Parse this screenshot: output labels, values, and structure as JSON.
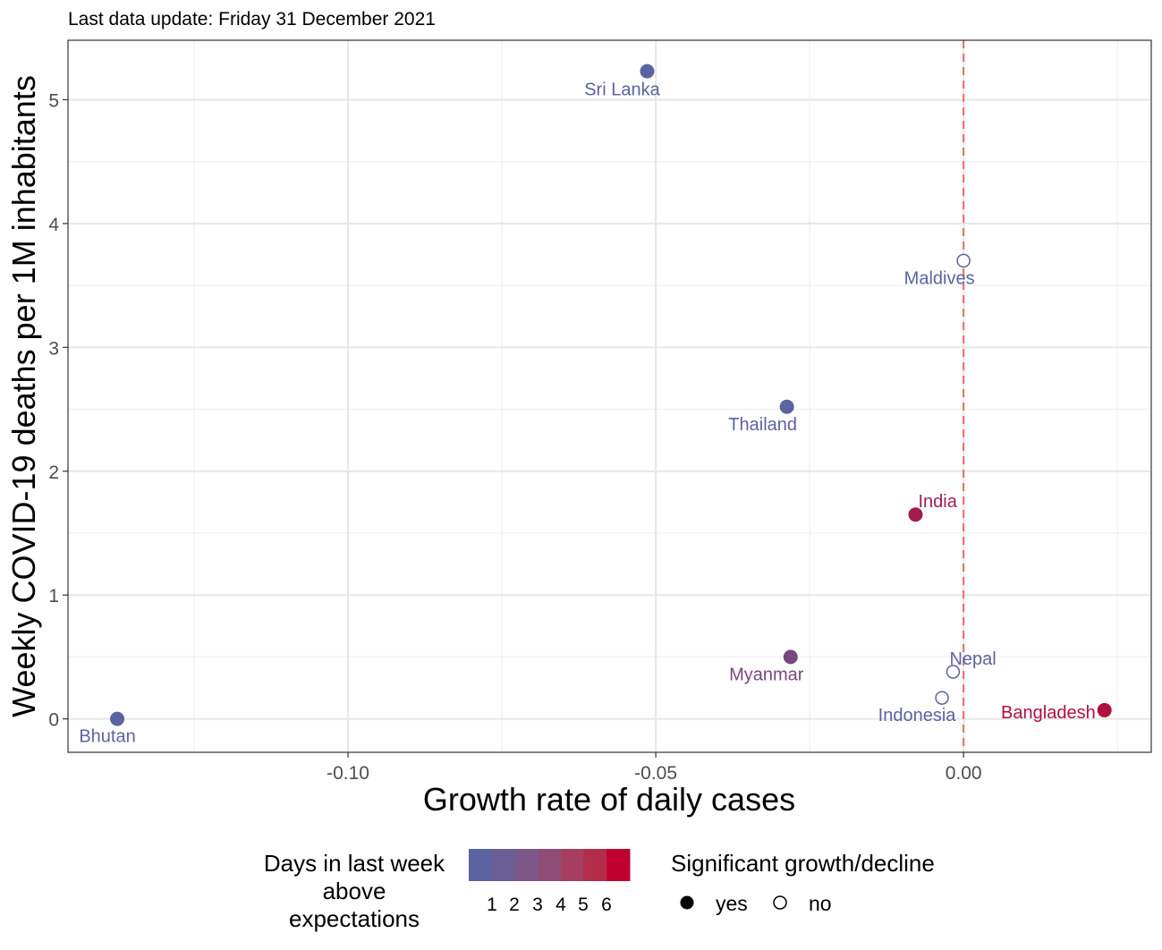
{
  "subtitle": "Last data update: Friday 31 December 2021",
  "chart_data": {
    "type": "scatter",
    "xlabel": "Growth rate of daily cases",
    "ylabel": "Weekly COVID-19 deaths per 1M inhabitants",
    "xlim": [
      -0.1455,
      0.0305
    ],
    "ylim": [
      -0.27,
      5.48
    ],
    "x_ticks": [
      -0.1,
      -0.05,
      0.0
    ],
    "x_tick_labels": [
      "-0.10",
      "-0.05",
      "0.00"
    ],
    "y_ticks": [
      0,
      1,
      2,
      3,
      4,
      5
    ],
    "y_tick_labels": [
      "0",
      "1",
      "2",
      "3",
      "4",
      "5"
    ],
    "grid": true,
    "reference_line": {
      "x": 0,
      "color": "#e8756f",
      "style": "dashed"
    },
    "points": [
      {
        "label": "Sri Lanka",
        "x": -0.0514,
        "y": 5.23,
        "days_above": 0,
        "significant": true
      },
      {
        "label": "Maldives",
        "x": 0.0,
        "y": 3.7,
        "days_above": 0,
        "significant": false
      },
      {
        "label": "Thailand",
        "x": -0.0287,
        "y": 2.52,
        "days_above": 0,
        "significant": true
      },
      {
        "label": "India",
        "x": -0.0078,
        "y": 1.65,
        "days_above": 5,
        "significant": true
      },
      {
        "label": "Myanmar",
        "x": -0.0281,
        "y": 0.5,
        "days_above": 2,
        "significant": true
      },
      {
        "label": "Nepal",
        "x": -0.0017,
        "y": 0.38,
        "days_above": 0,
        "significant": false
      },
      {
        "label": "Indonesia",
        "x": -0.0035,
        "y": 0.17,
        "days_above": 0,
        "significant": false
      },
      {
        "label": "Bangladesh",
        "x": 0.0229,
        "y": 0.07,
        "days_above": 6,
        "significant": true
      },
      {
        "label": "Bhutan",
        "x": -0.1375,
        "y": 0.0,
        "days_above": 0,
        "significant": true
      }
    ],
    "color_scale": {
      "low": "#5b63a0",
      "high": "#c0002e",
      "max_days": 7,
      "steps": [
        "#5b63a0",
        "#6b5f95",
        "#7c5789",
        "#8f4c77",
        "#a53e60",
        "#b32d4a",
        "#c0002e"
      ]
    },
    "legend_color": {
      "title_lines": [
        "Days in last week",
        "above",
        "expectations"
      ],
      "labels": [
        "1",
        "2",
        "3",
        "4",
        "5",
        "6"
      ]
    },
    "legend_shape": {
      "title": "Significant growth/decline",
      "items": [
        "yes",
        "no"
      ]
    }
  }
}
